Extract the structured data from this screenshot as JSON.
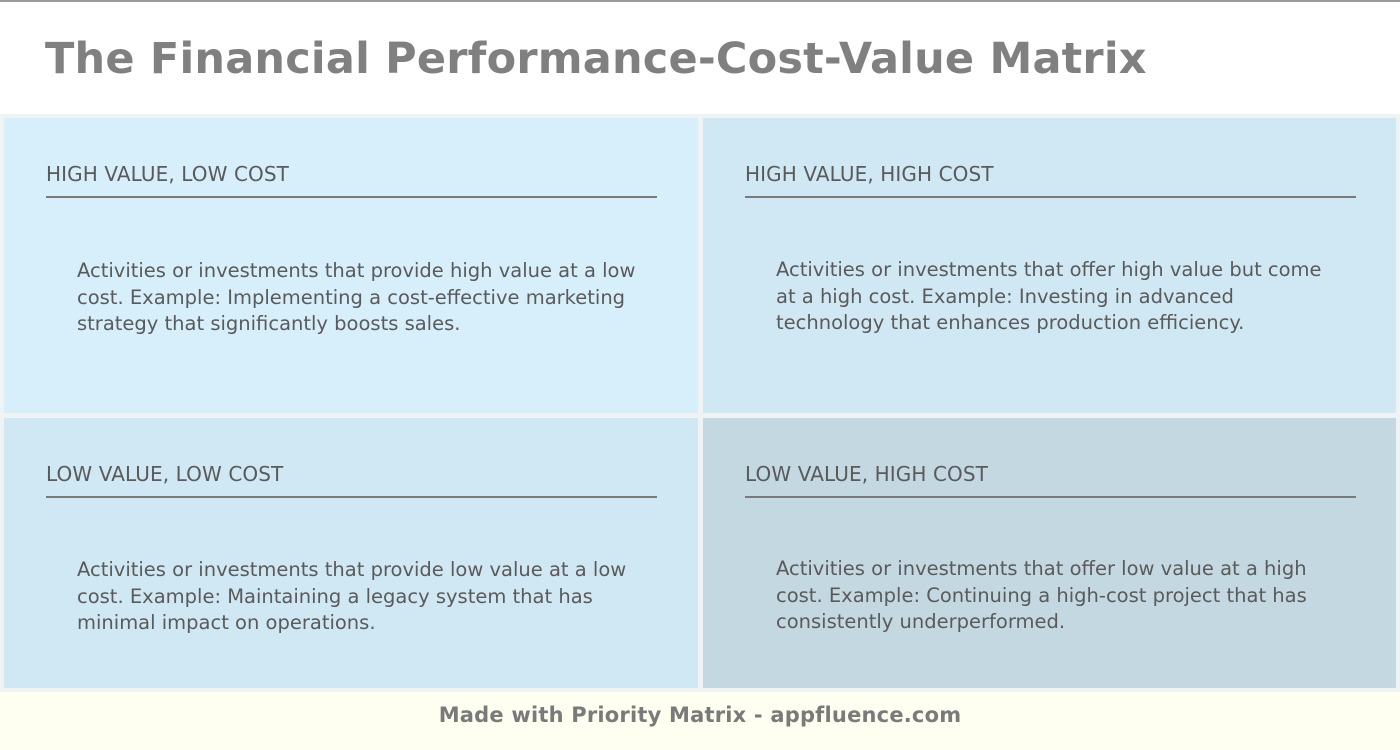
{
  "header": {
    "title": "The Financial Performance-Cost-Value Matrix"
  },
  "matrix": {
    "quadrants": [
      {
        "position": "top-left",
        "title": "HIGH VALUE, LOW COST",
        "description": "Activities or investments that provide high value at a low cost. Example: Implementing a cost-effective marketing strategy that significantly boosts sales.",
        "color": "#d7effb"
      },
      {
        "position": "top-right",
        "title": "HIGH VALUE, HIGH COST",
        "description": "Activities or investments that offer high value but come at a high cost. Example: Investing in advanced technology that enhances production efficiency.",
        "color": "#d0e8f3"
      },
      {
        "position": "bottom-left",
        "title": "LOW VALUE, LOW COST",
        "description": "Activities or investments that provide low value at a low cost. Example: Maintaining a legacy system that has minimal impact on operations.",
        "color": "#d0e8f3"
      },
      {
        "position": "bottom-right",
        "title": "LOW VALUE, HIGH COST",
        "description": "Activities or investments that offer low value at a high cost. Example: Continuing a high-cost project that has consistently underperformed.",
        "color": "#c4d8e2"
      }
    ]
  },
  "footer": {
    "text": "Made with Priority Matrix - appfluence.com"
  },
  "colors": {
    "title_text": "#808080",
    "body_text": "#5a5a5a",
    "footer_bg": "#fefff0",
    "gutter": "#eff3f4"
  }
}
